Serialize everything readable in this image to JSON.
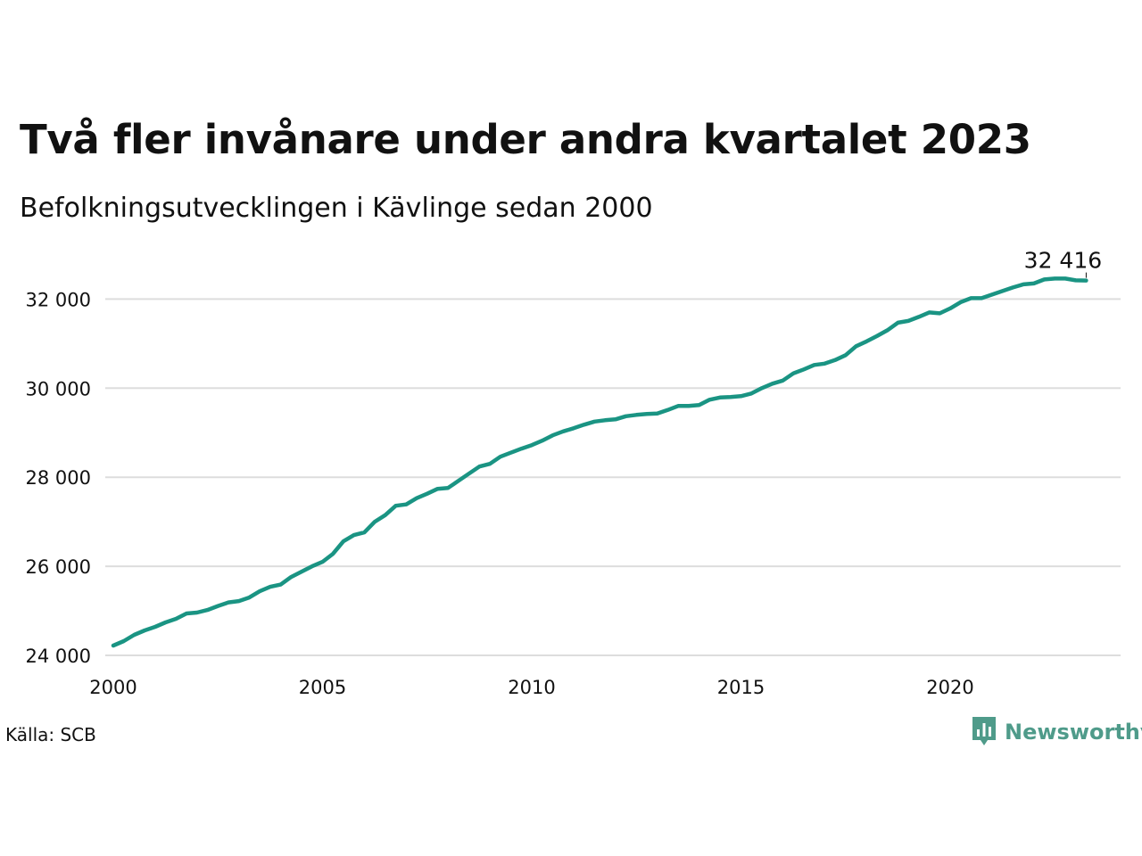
{
  "header": {
    "title": "Två fler invånare under andra kvartalet 2023",
    "subtitle": "Befolkningsutvecklingen i Kävlinge sedan 2000"
  },
  "footer": {
    "source": "Källa: SCB",
    "brand": "Newsworthy"
  },
  "colors": {
    "line": "#1a9483",
    "grid": "#dddddd",
    "brand": "#4f9b8a"
  },
  "chart_data": {
    "type": "line",
    "title": "Två fler invånare under andra kvartalet 2023",
    "subtitle": "Befolkningsutvecklingen i Kävlinge sedan 2000",
    "xlabel": "",
    "ylabel": "",
    "xlim": [
      2000,
      2024.25
    ],
    "ylim": [
      24000,
      32700
    ],
    "x_ticks": [
      2000,
      2005,
      2010,
      2015,
      2020
    ],
    "y_ticks": [
      24000,
      26000,
      28000,
      30000,
      32000
    ],
    "y_tick_labels": [
      "24 000",
      "26 000",
      "28 000",
      "30 000",
      "32 000"
    ],
    "grid": true,
    "last_label": "32 416",
    "series": [
      {
        "x": [
          2000.0,
          2000.25,
          2000.5,
          2000.75,
          2001.0,
          2001.25,
          2001.5,
          2001.75,
          2002.0,
          2002.25,
          2002.5,
          2002.75,
          2003.0,
          2003.25,
          2003.5,
          2003.75,
          2004.0,
          2004.25,
          2004.5,
          2004.75,
          2005.0,
          2005.25,
          2005.5,
          2005.75,
          2006.0,
          2006.25,
          2006.5,
          2006.75,
          2007.0,
          2007.25,
          2007.5,
          2007.75,
          2008.0,
          2008.25,
          2008.5,
          2008.75,
          2009.0,
          2009.25,
          2009.5,
          2009.75,
          2010.0,
          2010.25,
          2010.5,
          2010.75,
          2011.0,
          2011.25,
          2011.5,
          2011.75,
          2012.0,
          2012.25,
          2012.5,
          2012.75,
          2013.0,
          2013.25,
          2013.5,
          2013.75,
          2014.0,
          2014.25,
          2014.5,
          2014.75,
          2015.0,
          2015.25,
          2015.5,
          2015.75,
          2016.0,
          2016.25,
          2016.5,
          2016.75,
          2017.0,
          2017.25,
          2017.5,
          2017.75,
          2018.0,
          2018.25,
          2018.5,
          2018.75,
          2019.0,
          2019.25,
          2019.5,
          2019.75,
          2020.0,
          2020.25,
          2020.5,
          2020.75,
          2021.0,
          2021.25,
          2021.5,
          2021.75,
          2022.0,
          2022.25,
          2022.5,
          2022.75,
          2023.0,
          2023.25
        ],
        "values": [
          24220,
          24320,
          24460,
          24560,
          24640,
          24740,
          24820,
          24940,
          24960,
          25020,
          25110,
          25190,
          25220,
          25300,
          25440,
          25540,
          25590,
          25760,
          25880,
          26000,
          26100,
          26280,
          26560,
          26700,
          26760,
          27000,
          27150,
          27360,
          27390,
          27530,
          27630,
          27740,
          27760,
          27920,
          28080,
          28240,
          28300,
          28460,
          28550,
          28640,
          28720,
          28820,
          28940,
          29030,
          29100,
          29180,
          29250,
          29280,
          29300,
          29370,
          29400,
          29420,
          29430,
          29510,
          29600,
          29600,
          29620,
          29740,
          29790,
          29800,
          29820,
          29880,
          30000,
          30100,
          30170,
          30330,
          30420,
          30520,
          30550,
          30630,
          30740,
          30940,
          31050,
          31170,
          31300,
          31470,
          31510,
          31600,
          31700,
          31680,
          31790,
          31930,
          32020,
          32020,
          32100,
          32180,
          32260,
          32330,
          32350,
          32440,
          32460,
          32460,
          32420,
          32416
        ]
      }
    ]
  }
}
